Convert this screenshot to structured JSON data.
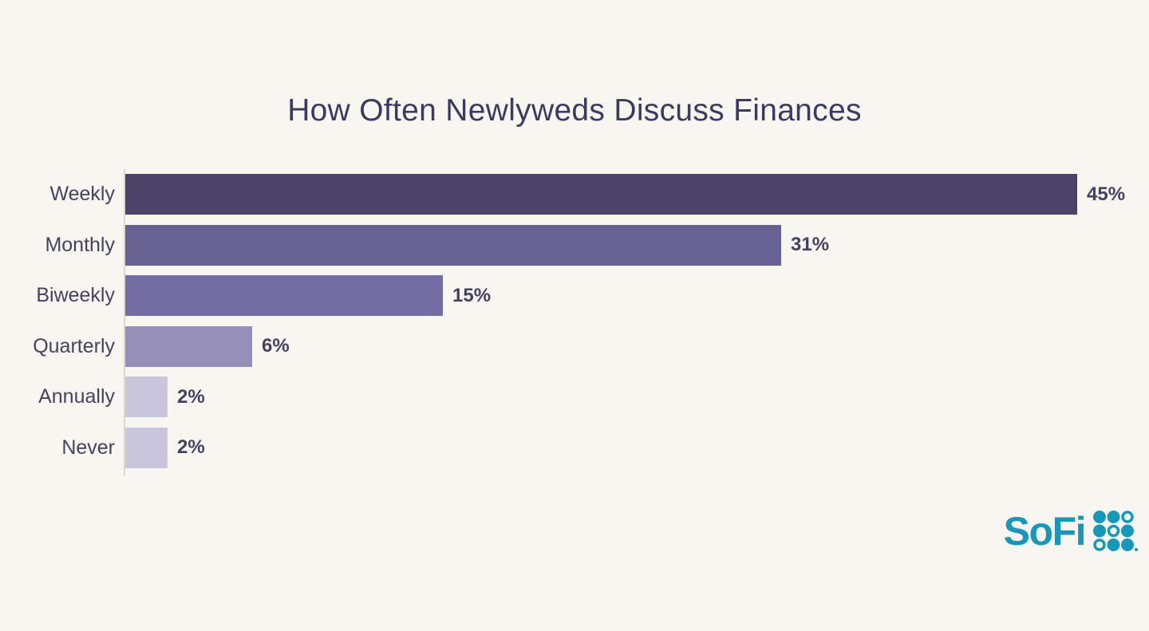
{
  "page": {
    "background_color": "#f8f6f1"
  },
  "chart_data": {
    "type": "bar",
    "orientation": "horizontal",
    "title": "How Often Newlyweds Discuss Finances",
    "categories": [
      "Weekly",
      "Monthly",
      "Biweekly",
      "Quarterly",
      "Annually",
      "Never"
    ],
    "values": [
      45,
      31,
      15,
      6,
      2,
      2
    ],
    "value_labels": [
      "45%",
      "31%",
      "15%",
      "6%",
      "2%",
      "2%"
    ],
    "xlabel": "",
    "ylabel": "",
    "xlim": [
      0,
      45
    ],
    "grid": false,
    "legend": false,
    "bar_colors": [
      "#4a4267",
      "#666190",
      "#746da4",
      "#958fba",
      "#c8c5dc",
      "#c8c5dc"
    ],
    "title_color": "#3e3a5f",
    "category_label_color": "#46415f",
    "value_label_color": "#454060",
    "axis_line_color": "#dbd8d2"
  },
  "branding": {
    "logo_text": "SoFi",
    "logo_color": "#1898b8",
    "logo_grid": [
      [
        "filled",
        "filled",
        "outline"
      ],
      [
        "filled",
        "outline",
        "filled"
      ],
      [
        "outline",
        "filled",
        "filled"
      ]
    ]
  }
}
